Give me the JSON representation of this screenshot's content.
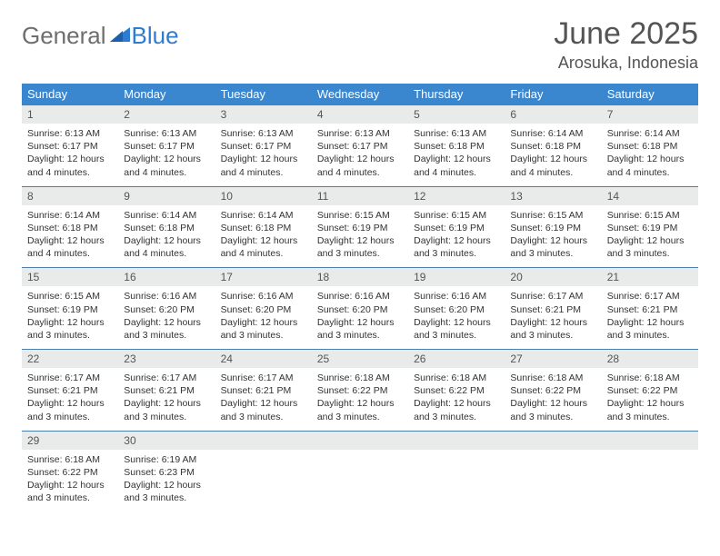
{
  "logo": {
    "text_general": "General",
    "text_blue": "Blue"
  },
  "title": "June 2025",
  "location": "Arosuka, Indonesia",
  "columns": [
    "Sunday",
    "Monday",
    "Tuesday",
    "Wednesday",
    "Thursday",
    "Friday",
    "Saturday"
  ],
  "colors": {
    "header_bg": "#3a87cf",
    "header_fg": "#ffffff",
    "daynum_bg": "#e9eaea",
    "row_border": "#4a7fae",
    "title_color": "#545454",
    "logo_gray": "#6e6e6e",
    "logo_blue": "#2e7cd1"
  },
  "weeks": [
    [
      {
        "n": "1",
        "sr": "6:13 AM",
        "ss": "6:17 PM",
        "dl": "12 hours and 4 minutes."
      },
      {
        "n": "2",
        "sr": "6:13 AM",
        "ss": "6:17 PM",
        "dl": "12 hours and 4 minutes."
      },
      {
        "n": "3",
        "sr": "6:13 AM",
        "ss": "6:17 PM",
        "dl": "12 hours and 4 minutes."
      },
      {
        "n": "4",
        "sr": "6:13 AM",
        "ss": "6:17 PM",
        "dl": "12 hours and 4 minutes."
      },
      {
        "n": "5",
        "sr": "6:13 AM",
        "ss": "6:18 PM",
        "dl": "12 hours and 4 minutes."
      },
      {
        "n": "6",
        "sr": "6:14 AM",
        "ss": "6:18 PM",
        "dl": "12 hours and 4 minutes."
      },
      {
        "n": "7",
        "sr": "6:14 AM",
        "ss": "6:18 PM",
        "dl": "12 hours and 4 minutes."
      }
    ],
    [
      {
        "n": "8",
        "sr": "6:14 AM",
        "ss": "6:18 PM",
        "dl": "12 hours and 4 minutes."
      },
      {
        "n": "9",
        "sr": "6:14 AM",
        "ss": "6:18 PM",
        "dl": "12 hours and 4 minutes."
      },
      {
        "n": "10",
        "sr": "6:14 AM",
        "ss": "6:18 PM",
        "dl": "12 hours and 4 minutes."
      },
      {
        "n": "11",
        "sr": "6:15 AM",
        "ss": "6:19 PM",
        "dl": "12 hours and 3 minutes."
      },
      {
        "n": "12",
        "sr": "6:15 AM",
        "ss": "6:19 PM",
        "dl": "12 hours and 3 minutes."
      },
      {
        "n": "13",
        "sr": "6:15 AM",
        "ss": "6:19 PM",
        "dl": "12 hours and 3 minutes."
      },
      {
        "n": "14",
        "sr": "6:15 AM",
        "ss": "6:19 PM",
        "dl": "12 hours and 3 minutes."
      }
    ],
    [
      {
        "n": "15",
        "sr": "6:15 AM",
        "ss": "6:19 PM",
        "dl": "12 hours and 3 minutes."
      },
      {
        "n": "16",
        "sr": "6:16 AM",
        "ss": "6:20 PM",
        "dl": "12 hours and 3 minutes."
      },
      {
        "n": "17",
        "sr": "6:16 AM",
        "ss": "6:20 PM",
        "dl": "12 hours and 3 minutes."
      },
      {
        "n": "18",
        "sr": "6:16 AM",
        "ss": "6:20 PM",
        "dl": "12 hours and 3 minutes."
      },
      {
        "n": "19",
        "sr": "6:16 AM",
        "ss": "6:20 PM",
        "dl": "12 hours and 3 minutes."
      },
      {
        "n": "20",
        "sr": "6:17 AM",
        "ss": "6:21 PM",
        "dl": "12 hours and 3 minutes."
      },
      {
        "n": "21",
        "sr": "6:17 AM",
        "ss": "6:21 PM",
        "dl": "12 hours and 3 minutes."
      }
    ],
    [
      {
        "n": "22",
        "sr": "6:17 AM",
        "ss": "6:21 PM",
        "dl": "12 hours and 3 minutes."
      },
      {
        "n": "23",
        "sr": "6:17 AM",
        "ss": "6:21 PM",
        "dl": "12 hours and 3 minutes."
      },
      {
        "n": "24",
        "sr": "6:17 AM",
        "ss": "6:21 PM",
        "dl": "12 hours and 3 minutes."
      },
      {
        "n": "25",
        "sr": "6:18 AM",
        "ss": "6:22 PM",
        "dl": "12 hours and 3 minutes."
      },
      {
        "n": "26",
        "sr": "6:18 AM",
        "ss": "6:22 PM",
        "dl": "12 hours and 3 minutes."
      },
      {
        "n": "27",
        "sr": "6:18 AM",
        "ss": "6:22 PM",
        "dl": "12 hours and 3 minutes."
      },
      {
        "n": "28",
        "sr": "6:18 AM",
        "ss": "6:22 PM",
        "dl": "12 hours and 3 minutes."
      }
    ],
    [
      {
        "n": "29",
        "sr": "6:18 AM",
        "ss": "6:22 PM",
        "dl": "12 hours and 3 minutes."
      },
      {
        "n": "30",
        "sr": "6:19 AM",
        "ss": "6:23 PM",
        "dl": "12 hours and 3 minutes."
      },
      {
        "empty": true
      },
      {
        "empty": true
      },
      {
        "empty": true
      },
      {
        "empty": true
      },
      {
        "empty": true
      }
    ]
  ],
  "labels": {
    "sunrise": "Sunrise: ",
    "sunset": "Sunset: ",
    "daylight": "Daylight: "
  }
}
